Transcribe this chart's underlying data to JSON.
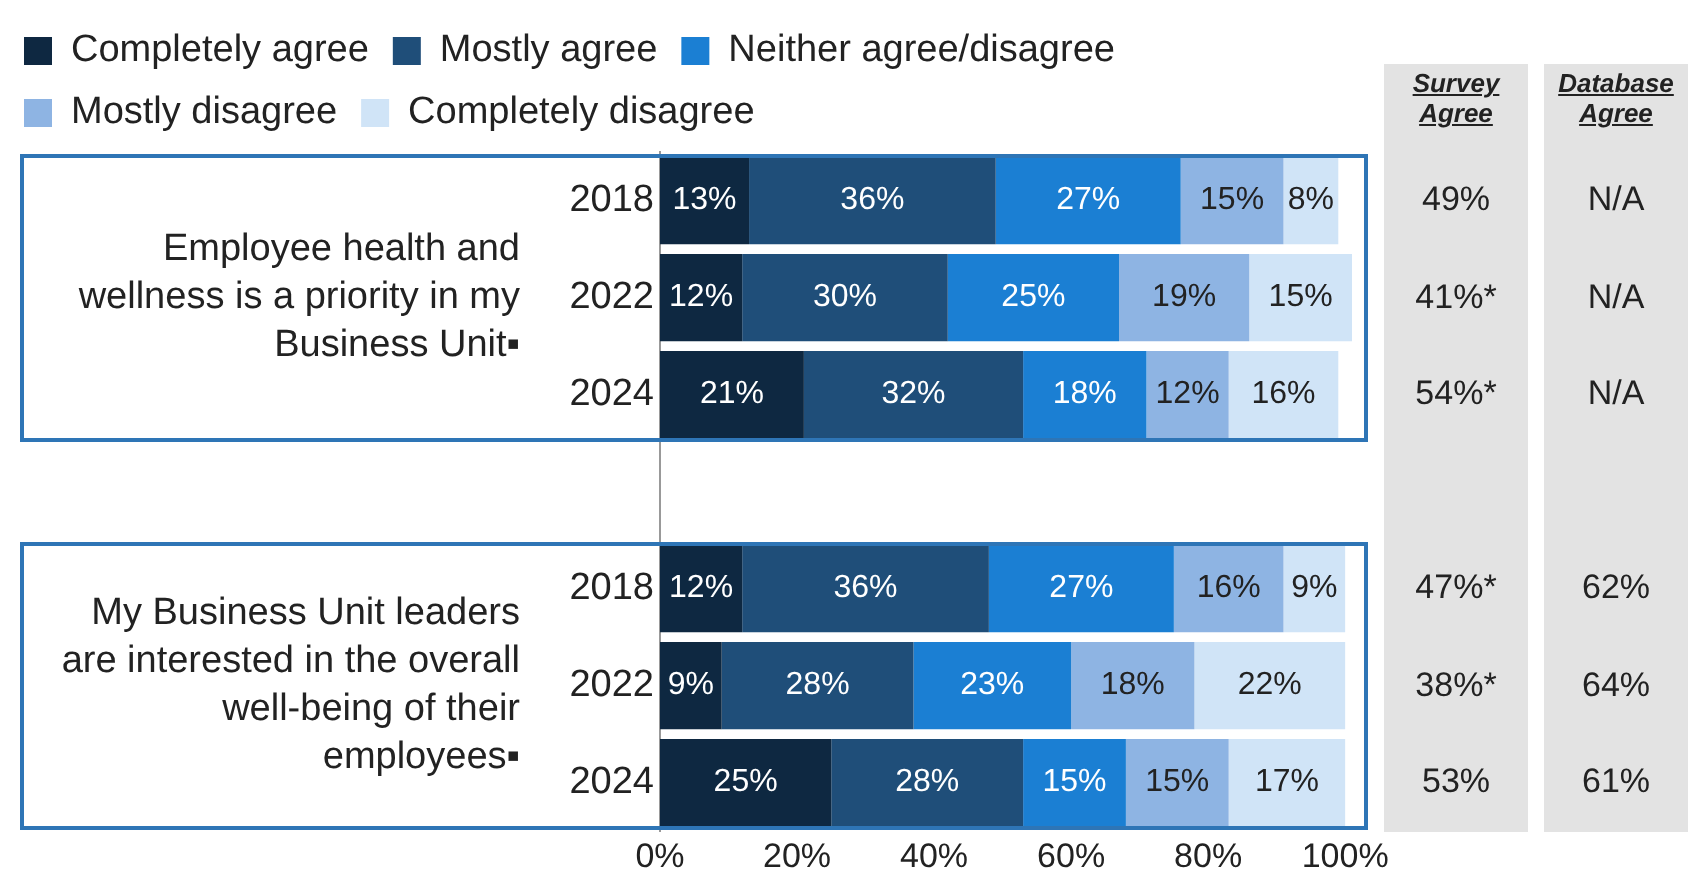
{
  "chart_data": {
    "type": "bar",
    "orientation": "horizontal",
    "stacked": true,
    "legend": "top",
    "grid": false,
    "categories": [
      "2018",
      "2022",
      "2024",
      null,
      "2018",
      "2022",
      "2024"
    ],
    "series": [
      {
        "name": "Completely agree",
        "color": "#0e2841",
        "values": [
          13,
          12,
          21,
          null,
          12,
          9,
          25
        ],
        "value_labels": [
          "13%",
          "12%",
          "21%",
          null,
          "12%",
          "9%",
          "25%"
        ]
      },
      {
        "name": "Mostly agree",
        "color": "#1f4e79",
        "values": [
          36,
          30,
          32,
          null,
          36,
          28,
          28
        ],
        "value_labels": [
          "36%",
          "30%",
          "32%",
          null,
          "36%",
          "28%",
          "28%"
        ]
      },
      {
        "name": "Neither agree/disagree",
        "color": "#1b7fd3",
        "values": [
          27,
          25,
          18,
          null,
          27,
          23,
          15
        ],
        "value_labels": [
          "27%",
          "25%",
          "18%",
          null,
          "27%",
          "23%",
          "15%"
        ]
      },
      {
        "name": "Mostly disagree",
        "color": "#8eb4e3",
        "values": [
          15,
          19,
          12,
          null,
          16,
          18,
          15
        ],
        "value_labels": [
          "15%",
          "19%",
          "12%",
          null,
          "16%",
          "18%",
          "15%"
        ]
      },
      {
        "name": "Completely disagree",
        "color": "#d0e4f7",
        "values": [
          8,
          15,
          16,
          null,
          9,
          22,
          17
        ],
        "value_labels": [
          "8%",
          "15%",
          "16%",
          null,
          "9%",
          "22%",
          "17%"
        ]
      }
    ],
    "xlim": [
      0,
      101
    ],
    "xticks": [
      {
        "value": 0,
        "label": "0%"
      },
      {
        "value": 20,
        "label": "20%"
      },
      {
        "value": 40,
        "label": "40%"
      },
      {
        "value": 60,
        "label": "60%"
      },
      {
        "value": 80,
        "label": "80%"
      },
      {
        "value": 100,
        "label": "100%"
      }
    ],
    "annotations": [
      "Employee health and wellness is a priority in my Business Unit▪",
      "My Business Unit leaders are interested in the overall well-being of their employees▪",
      "Survey Agree",
      "Database Agree",
      "49%",
      "N/A",
      "41%*",
      "N/A",
      "54%*",
      "N/A",
      "47%*",
      "62%",
      "38%*",
      "64%",
      "53%",
      "61%"
    ]
  }
}
